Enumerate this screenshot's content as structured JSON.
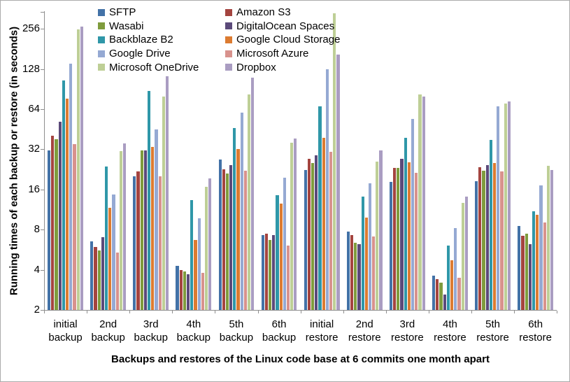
{
  "chart_data": {
    "type": "bar",
    "title": "",
    "xlabel": "Backups and restores of the Linux code base at 6 commits one month apart",
    "ylabel": "Running times of each backup or restore (in seconds)",
    "y_scale": "log2",
    "ylim": [
      2,
      350
    ],
    "yticks": [
      256,
      128,
      64,
      32,
      16,
      8,
      4,
      2
    ],
    "grid": false,
    "categories": [
      "initial backup",
      "2nd backup",
      "3rd backup",
      "4th backup",
      "5th backup",
      "6th backup",
      "initial restore",
      "2nd restore",
      "3rd restore",
      "4th restore",
      "5th restore",
      "6th restore"
    ],
    "series": [
      {
        "name": "SFTP",
        "color": "#4372a7",
        "values": [
          31.5,
          6.5,
          20.2,
          4.3,
          26.8,
          7.3,
          22.4,
          7.7,
          18.2,
          3.6,
          18.4,
          8.5
        ]
      },
      {
        "name": "Amazon S3",
        "color": "#a4443f",
        "values": [
          40.6,
          5.9,
          21.8,
          4.0,
          22.7,
          7.5,
          27.2,
          7.3,
          23.3,
          3.4,
          23.4,
          7.2
        ]
      },
      {
        "name": "Wasabi",
        "color": "#7f9c3d",
        "values": [
          38.0,
          5.6,
          31.5,
          3.9,
          21.2,
          6.7,
          25.4,
          6.4,
          23.2,
          3.2,
          22.1,
          7.5
        ]
      },
      {
        "name": "DigitalOcean Spaces",
        "color": "#5b4a7a",
        "values": [
          51.5,
          7.0,
          31.3,
          3.7,
          24.4,
          7.3,
          28.9,
          6.2,
          27.3,
          2.6,
          24.4,
          6.2
        ]
      },
      {
        "name": "Backblaze B2",
        "color": "#2f97a8",
        "values": [
          105,
          23.7,
          88,
          13.4,
          46,
          14.5,
          67,
          14.2,
          38.8,
          6.1,
          37.6,
          11.0
        ]
      },
      {
        "name": "Google Cloud Storage",
        "color": "#dc7b31",
        "values": [
          77,
          11.7,
          33.2,
          6.7,
          32,
          12.5,
          39,
          9.9,
          25.7,
          4.7,
          25.4,
          10.3
        ]
      },
      {
        "name": "Google Drive",
        "color": "#95a9d3",
        "values": [
          140,
          14.6,
          45,
          9.7,
          60.6,
          19.6,
          128,
          17.7,
          54,
          8.2,
          67,
          17.1
        ]
      },
      {
        "name": "Microsoft Azure",
        "color": "#d8928d",
        "values": [
          34.8,
          5.4,
          20.2,
          3.8,
          22.1,
          6.1,
          30.5,
          7.1,
          21.4,
          3.5,
          21.9,
          9.1
        ]
      },
      {
        "name": "Microsoft OneDrive",
        "color": "#becf96",
        "values": [
          255,
          31,
          79.5,
          16.8,
          82,
          35.8,
          335,
          26,
          82,
          12.7,
          70.5,
          24.1
        ]
      },
      {
        "name": "Dropbox",
        "color": "#aa9dc2",
        "values": [
          266,
          35.3,
          113,
          19.4,
          110,
          38.4,
          165,
          31.3,
          79.5,
          14.1,
          73,
          22.5
        ]
      }
    ],
    "legend": {
      "position": "top",
      "columns": [
        [
          0,
          2,
          4,
          6,
          8
        ],
        [
          1,
          3,
          5,
          7,
          9
        ]
      ]
    }
  }
}
